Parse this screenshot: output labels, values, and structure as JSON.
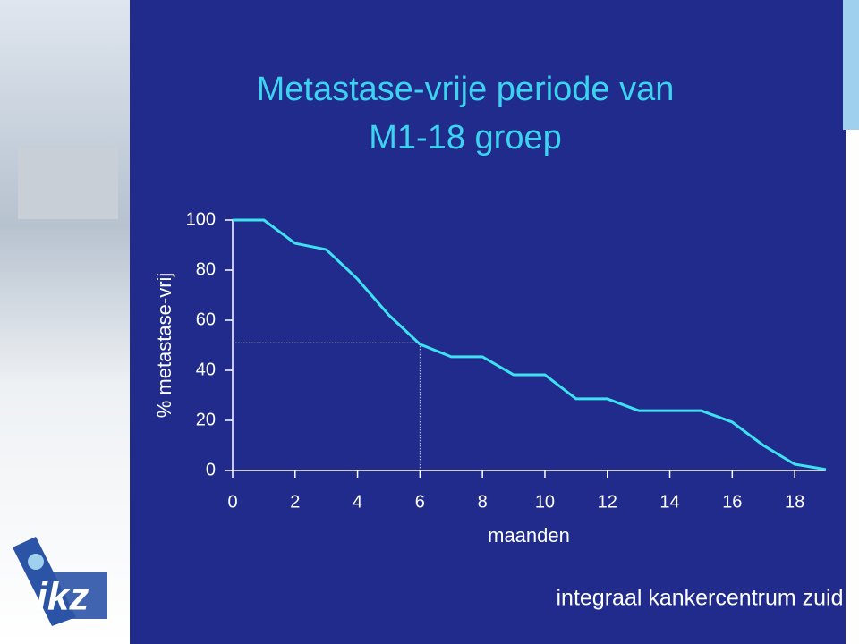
{
  "chart_data": {
    "type": "line",
    "title": [
      "Metastase-vrije periode van",
      "M1-18 groep"
    ],
    "xlabel": "maanden",
    "ylabel": "% metastase-vrij",
    "x": [
      0,
      1,
      2,
      3,
      4,
      5,
      6,
      7,
      8,
      9,
      10,
      11,
      12,
      13,
      14,
      15,
      16,
      17,
      18,
      19
    ],
    "series": [
      {
        "color": "#3fe0f2",
        "values": [
          100,
          100,
          90.7,
          88.2,
          76.4,
          62.1,
          50.4,
          45.4,
          45.4,
          38.2,
          38.2,
          28.6,
          28.6,
          23.9,
          23.9,
          23.9,
          19.3,
          10,
          2.5,
          0.4
        ]
      }
    ],
    "median_guide": {
      "x": 6,
      "y": 51
    },
    "xlim": [
      0,
      19
    ],
    "ylim": [
      0,
      100
    ],
    "xticks": [
      0,
      2,
      4,
      6,
      8,
      10,
      12,
      14,
      16,
      18
    ],
    "yticks": [
      0,
      20,
      40,
      60,
      80,
      100
    ]
  },
  "footer": "integraal kankercentrum zuid",
  "logo": "ikz"
}
